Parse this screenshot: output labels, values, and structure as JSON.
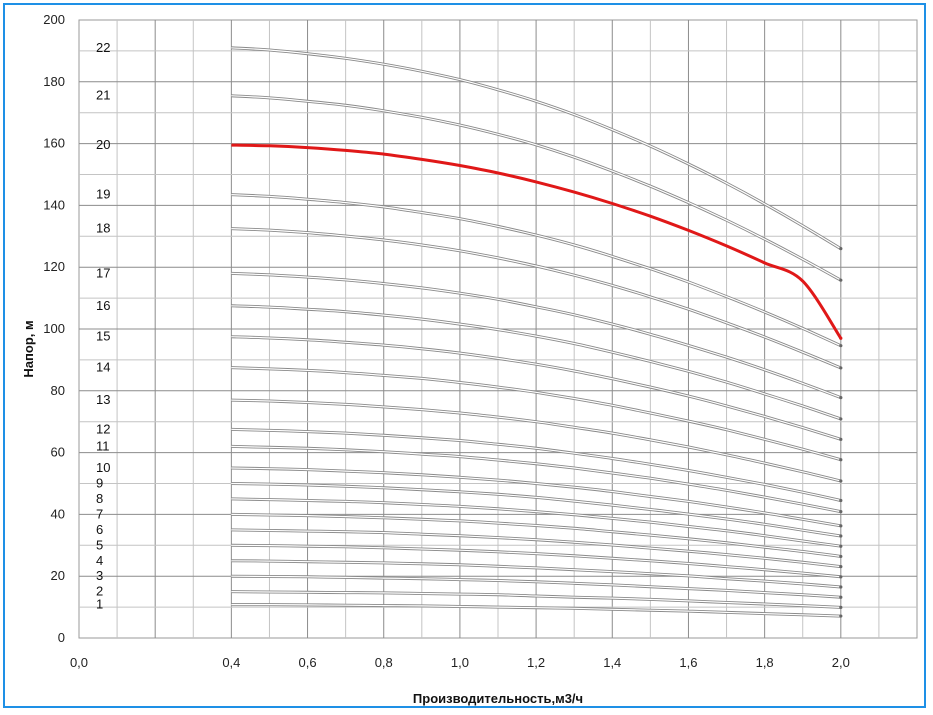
{
  "chart_data": {
    "type": "line",
    "title": "",
    "xlabel": "Производительность,м3/ч",
    "ylabel": "Напор, м",
    "xlim": [
      0.0,
      2.2
    ],
    "ylim": [
      0,
      200
    ],
    "grid": true,
    "x_ticks": [
      "0,0",
      "0,4",
      "0,6",
      "0,8",
      "1,0",
      "1,2",
      "1,4",
      "1,6",
      "1,8",
      "2,0"
    ],
    "y_ticks": [
      "0",
      "20",
      "40",
      "60",
      "80",
      "100",
      "120",
      "140",
      "160",
      "180",
      "200"
    ],
    "highlight_color": "#e01818",
    "curve_color": "#8a8a8a",
    "highlighted_series": "20",
    "x": [
      0.4,
      0.5,
      0.6,
      0.7,
      0.8,
      0.9,
      1.0,
      1.1,
      1.2,
      1.3,
      1.4,
      1.5,
      1.6,
      1.7,
      1.8,
      1.9,
      2.0
    ],
    "series": [
      {
        "name": "1",
        "values": [
          10.8,
          10.8,
          10.7,
          10.6,
          10.5,
          10.4,
          10.2,
          10.0,
          9.8,
          9.6,
          9.3,
          9.0,
          8.7,
          8.3,
          7.9,
          7.5,
          7.1
        ]
      },
      {
        "name": "2",
        "values": [
          15.0,
          14.9,
          14.8,
          14.7,
          14.6,
          14.4,
          14.2,
          14.0,
          13.6,
          13.2,
          12.9,
          12.5,
          12.0,
          11.5,
          11.0,
          10.5,
          9.9
        ]
      },
      {
        "name": "3",
        "values": [
          20.0,
          19.9,
          19.8,
          19.6,
          19.4,
          19.2,
          18.9,
          18.6,
          18.2,
          17.7,
          17.2,
          16.6,
          16.0,
          15.4,
          14.7,
          14.0,
          13.2
        ]
      },
      {
        "name": "4",
        "values": [
          25.0,
          24.9,
          24.7,
          24.5,
          24.3,
          24.0,
          23.7,
          23.2,
          22.7,
          22.1,
          21.5,
          20.8,
          20.1,
          19.2,
          18.4,
          17.5,
          16.5
        ]
      },
      {
        "name": "5",
        "values": [
          30.0,
          29.9,
          29.7,
          29.5,
          29.2,
          28.8,
          28.4,
          27.9,
          27.3,
          26.6,
          25.8,
          25.0,
          24.1,
          23.1,
          22.1,
          21.0,
          19.8
        ]
      },
      {
        "name": "6",
        "values": [
          35.0,
          34.8,
          34.6,
          34.4,
          34.1,
          33.6,
          33.1,
          32.5,
          31.8,
          31.0,
          30.1,
          29.1,
          28.1,
          27.0,
          25.8,
          24.5,
          23.1
        ]
      },
      {
        "name": "7",
        "values": [
          40.0,
          39.8,
          39.6,
          39.3,
          38.9,
          38.4,
          37.9,
          37.2,
          36.4,
          35.5,
          34.4,
          33.3,
          32.1,
          30.8,
          29.4,
          28.0,
          26.4
        ]
      },
      {
        "name": "8",
        "values": [
          45.0,
          44.8,
          44.5,
          44.2,
          43.8,
          43.2,
          42.6,
          41.8,
          40.9,
          39.9,
          38.7,
          37.5,
          36.1,
          34.7,
          33.1,
          31.4,
          29.7
        ]
      },
      {
        "name": "9",
        "values": [
          50.0,
          49.8,
          49.5,
          49.1,
          48.6,
          48.0,
          47.3,
          46.5,
          45.5,
          44.3,
          43.0,
          41.6,
          40.1,
          38.5,
          36.8,
          34.9,
          33.0
        ]
      },
      {
        "name": "10",
        "values": [
          55.0,
          54.8,
          54.5,
          54.0,
          53.5,
          52.8,
          52.0,
          51.1,
          50.0,
          48.8,
          47.4,
          45.8,
          44.2,
          42.4,
          40.5,
          38.4,
          36.3
        ]
      },
      {
        "name": "11",
        "values": [
          62.0,
          61.7,
          61.4,
          60.9,
          60.3,
          59.5,
          58.7,
          57.6,
          56.4,
          55.0,
          53.4,
          51.7,
          49.8,
          47.8,
          45.6,
          43.3,
          40.9
        ]
      },
      {
        "name": "12",
        "values": [
          67.5,
          67.2,
          66.8,
          66.3,
          65.6,
          64.8,
          63.9,
          62.7,
          61.4,
          59.8,
          58.1,
          56.2,
          54.2,
          52.0,
          49.7,
          47.2,
          44.5
        ]
      },
      {
        "name": "13",
        "values": [
          77.0,
          76.7,
          76.2,
          75.6,
          74.8,
          73.9,
          72.8,
          71.5,
          70.0,
          68.2,
          66.3,
          64.1,
          61.8,
          59.3,
          56.6,
          53.8,
          50.8
        ]
      },
      {
        "name": "14",
        "values": [
          87.5,
          87.1,
          86.6,
          85.9,
          85.0,
          84.0,
          82.7,
          81.2,
          79.5,
          77.5,
          75.3,
          72.8,
          70.2,
          67.4,
          64.3,
          61.1,
          57.7
        ]
      },
      {
        "name": "15",
        "values": [
          97.5,
          97.1,
          96.5,
          95.7,
          94.8,
          93.6,
          92.2,
          90.5,
          88.6,
          86.4,
          83.9,
          81.2,
          78.3,
          75.1,
          71.7,
          68.1,
          64.3
        ]
      },
      {
        "name": "16",
        "values": [
          107.5,
          107.1,
          106.4,
          105.6,
          104.5,
          103.2,
          101.6,
          99.8,
          97.7,
          95.3,
          92.5,
          89.5,
          86.3,
          82.8,
          79.0,
          75.1,
          70.9
        ]
      },
      {
        "name": "17",
        "values": [
          118.0,
          117.5,
          116.8,
          115.9,
          114.7,
          113.3,
          111.6,
          109.6,
          107.2,
          104.6,
          101.6,
          98.3,
          94.7,
          90.9,
          86.8,
          82.4,
          77.8
        ]
      },
      {
        "name": "18",
        "values": [
          132.5,
          132.0,
          131.2,
          130.1,
          128.8,
          127.2,
          125.3,
          123.0,
          120.4,
          117.4,
          114.1,
          110.4,
          106.4,
          102.0,
          97.4,
          92.5,
          87.4
        ]
      },
      {
        "name": "19",
        "values": [
          143.5,
          142.9,
          142.0,
          140.9,
          139.5,
          137.7,
          135.7,
          133.2,
          130.4,
          127.2,
          123.5,
          119.5,
          115.2,
          110.5,
          105.5,
          100.2,
          94.6
        ]
      },
      {
        "name": "20",
        "values": [
          159.5,
          159.3,
          158.7,
          157.8,
          156.6,
          154.9,
          152.9,
          150.5,
          147.6,
          144.3,
          140.6,
          136.5,
          131.9,
          126.9,
          121.4,
          115.5,
          97.0
        ]
      },
      {
        "name": "21",
        "values": [
          175.5,
          174.8,
          173.7,
          172.4,
          170.6,
          168.5,
          166.0,
          163.0,
          159.6,
          155.6,
          151.1,
          146.2,
          140.9,
          135.2,
          129.1,
          122.6,
          115.8
        ]
      },
      {
        "name": "22",
        "values": [
          191.0,
          190.3,
          189.1,
          187.6,
          185.7,
          183.4,
          180.7,
          177.4,
          173.7,
          169.4,
          164.5,
          159.2,
          153.4,
          147.2,
          140.5,
          133.4,
          126.0
        ]
      }
    ]
  }
}
